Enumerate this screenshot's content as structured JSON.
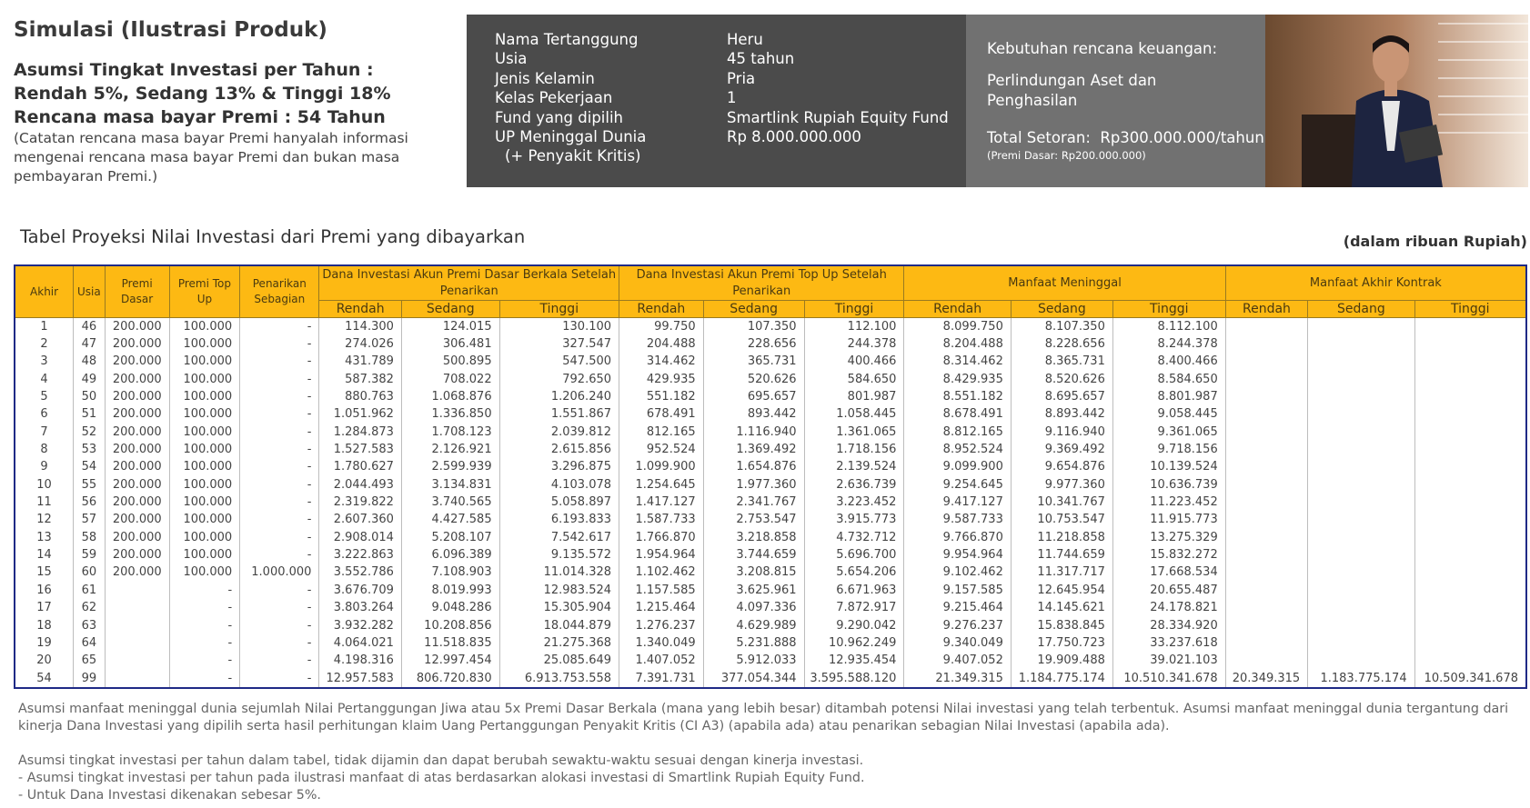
{
  "header": {
    "title": "Simulasi (Ilustrasi Produk)",
    "assumption_lines": [
      "Asumsi Tingkat Investasi per Tahun :",
      "Rendah 5%, Sedang 13% & Tinggi 18%",
      "Rencana masa bayar Premi : 54 Tahun"
    ],
    "note": "(Catatan rencana masa bayar Premi hanyalah informasi mengenai rencana masa bayar Premi dan bukan masa pembayaran Premi.)"
  },
  "info": {
    "rows": [
      {
        "label": "Nama Tertanggung",
        "value": "Heru"
      },
      {
        "label": "Usia",
        "value": "45 tahun"
      },
      {
        "label": "Jenis Kelamin",
        "value": "Pria"
      },
      {
        "label": "Kelas Pekerjaan",
        "value": "1"
      },
      {
        "label": "Fund yang dipilih",
        "value": "Smartlink Rupiah Equity Fund"
      },
      {
        "label": "UP Meninggal Dunia",
        "value": "Rp 8.000.000.000"
      }
    ],
    "note": "(+ Penyakit Kritis)"
  },
  "needs": {
    "title": "Kebutuhan rencana keuangan:",
    "need": "Perlindungan Aset dan Penghasilan",
    "total": "Total Setoran:  Rp300.000.000/tahun",
    "premi_dasar": "(Premi Dasar: Rp200.000.000)"
  },
  "table": {
    "title": "Tabel Proyeksi Nilai Investasi dari Premi yang dibayarkan",
    "unit": "(dalam ribuan Rupiah)",
    "columns": [
      "Akhir",
      "Usia",
      "Premi Dasar",
      "Premi Top Up",
      "Penarikan Sebagian"
    ],
    "groups": [
      {
        "label": "Dana Investasi Akun Premi Dasar Berkala Setelah Penarikan",
        "sub": [
          "Rendah",
          "Sedang",
          "Tinggi"
        ]
      },
      {
        "label": "Dana Investasi Akun Premi Top Up Setelah Penarikan",
        "sub": [
          "Rendah",
          "Sedang",
          "Tinggi"
        ]
      },
      {
        "label": "Manfaat Meninggal",
        "sub": [
          "Rendah",
          "Sedang",
          "Tinggi"
        ]
      },
      {
        "label": "Manfaat Akhir Kontrak",
        "sub": [
          "Rendah",
          "Sedang",
          "Tinggi"
        ]
      }
    ],
    "rows": [
      [
        1,
        46,
        "200.000",
        "100.000",
        "-",
        "114.300",
        "124.015",
        "130.100",
        "99.750",
        "107.350",
        "112.100",
        "8.099.750",
        "8.107.350",
        "8.112.100"
      ],
      [
        2,
        47,
        "200.000",
        "100.000",
        "-",
        "274.026",
        "306.481",
        "327.547",
        "204.488",
        "228.656",
        "244.378",
        "8.204.488",
        "8.228.656",
        "8.244.378"
      ],
      [
        3,
        48,
        "200.000",
        "100.000",
        "-",
        "431.789",
        "500.895",
        "547.500",
        "314.462",
        "365.731",
        "400.466",
        "8.314.462",
        "8.365.731",
        "8.400.466"
      ],
      [
        4,
        49,
        "200.000",
        "100.000",
        "-",
        "587.382",
        "708.022",
        "792.650",
        "429.935",
        "520.626",
        "584.650",
        "8.429.935",
        "8.520.626",
        "8.584.650"
      ],
      [
        5,
        50,
        "200.000",
        "100.000",
        "-",
        "880.763",
        "1.068.876",
        "1.206.240",
        "551.182",
        "695.657",
        "801.987",
        "8.551.182",
        "8.695.657",
        "8.801.987"
      ],
      [
        6,
        51,
        "200.000",
        "100.000",
        "-",
        "1.051.962",
        "1.336.850",
        "1.551.867",
        "678.491",
        "893.442",
        "1.058.445",
        "8.678.491",
        "8.893.442",
        "9.058.445"
      ],
      [
        7,
        52,
        "200.000",
        "100.000",
        "-",
        "1.284.873",
        "1.708.123",
        "2.039.812",
        "812.165",
        "1.116.940",
        "1.361.065",
        "8.812.165",
        "9.116.940",
        "9.361.065"
      ],
      [
        8,
        53,
        "200.000",
        "100.000",
        "-",
        "1.527.583",
        "2.126.921",
        "2.615.856",
        "952.524",
        "1.369.492",
        "1.718.156",
        "8.952.524",
        "9.369.492",
        "9.718.156"
      ],
      [
        9,
        54,
        "200.000",
        "100.000",
        "-",
        "1.780.627",
        "2.599.939",
        "3.296.875",
        "1.099.900",
        "1.654.876",
        "2.139.524",
        "9.099.900",
        "9.654.876",
        "10.139.524"
      ],
      [
        10,
        55,
        "200.000",
        "100.000",
        "-",
        "2.044.493",
        "3.134.831",
        "4.103.078",
        "1.254.645",
        "1.977.360",
        "2.636.739",
        "9.254.645",
        "9.977.360",
        "10.636.739"
      ],
      [
        11,
        56,
        "200.000",
        "100.000",
        "-",
        "2.319.822",
        "3.740.565",
        "5.058.897",
        "1.417.127",
        "2.341.767",
        "3.223.452",
        "9.417.127",
        "10.341.767",
        "11.223.452"
      ],
      [
        12,
        57,
        "200.000",
        "100.000",
        "-",
        "2.607.360",
        "4.427.585",
        "6.193.833",
        "1.587.733",
        "2.753.547",
        "3.915.773",
        "9.587.733",
        "10.753.547",
        "11.915.773"
      ],
      [
        13,
        58,
        "200.000",
        "100.000",
        "-",
        "2.908.014",
        "5.208.107",
        "7.542.617",
        "1.766.870",
        "3.218.858",
        "4.732.712",
        "9.766.870",
        "11.218.858",
        "13.275.329"
      ],
      [
        14,
        59,
        "200.000",
        "100.000",
        "-",
        "3.222.863",
        "6.096.389",
        "9.135.572",
        "1.954.964",
        "3.744.659",
        "5.696.700",
        "9.954.964",
        "11.744.659",
        "15.832.272"
      ],
      [
        15,
        60,
        "200.000",
        "100.000",
        "1.000.000",
        "3.552.786",
        "7.108.903",
        "11.014.328",
        "1.102.462",
        "3.208.815",
        "5.654.206",
        "9.102.462",
        "11.317.717",
        "17.668.534"
      ],
      [
        16,
        61,
        null,
        "-",
        "-",
        "3.676.709",
        "8.019.993",
        "12.983.524",
        "1.157.585",
        "3.625.961",
        "6.671.963",
        "9.157.585",
        "12.645.954",
        "20.655.487"
      ],
      [
        17,
        62,
        null,
        "-",
        "-",
        "3.803.264",
        "9.048.286",
        "15.305.904",
        "1.215.464",
        "4.097.336",
        "7.872.917",
        "9.215.464",
        "14.145.621",
        "24.178.821"
      ],
      [
        18,
        63,
        null,
        "-",
        "-",
        "3.932.282",
        "10.208.856",
        "18.044.879",
        "1.276.237",
        "4.629.989",
        "9.290.042",
        "9.276.237",
        "15.838.845",
        "28.334.920"
      ],
      [
        19,
        64,
        null,
        "-",
        "-",
        "4.064.021",
        "11.518.835",
        "21.275.368",
        "1.340.049",
        "5.231.888",
        "10.962.249",
        "9.340.049",
        "17.750.723",
        "33.237.618"
      ],
      [
        20,
        65,
        null,
        "-",
        "-",
        "4.198.316",
        "12.997.454",
        "25.085.649",
        "1.407.052",
        "5.912.033",
        "12.935.454",
        "9.407.052",
        "19.909.488",
        "39.021.103"
      ],
      [
        54,
        99,
        null,
        "-",
        "-",
        "12.957.583",
        "806.720.830",
        "6.913.753.558",
        "7.391.731",
        "377.054.344",
        "3.595.588.120",
        "21.349.315",
        "1.184.775.174",
        "10.510.341.678",
        "20.349.315",
        "1.183.775.174",
        "10.509.341.678"
      ]
    ]
  },
  "footnotes": [
    "Asumsi manfaat meninggal dunia sejumlah Nilai Pertanggungan Jiwa atau 5x Premi Dasar Berkala (mana yang lebih besar) ditambah potensi Nilai investasi yang telah terbentuk. Asumsi manfaat meninggal dunia tergantung dari kinerja Dana Investasi yang dipilih serta hasil perhitungan klaim Uang Pertanggungan Penyakit Kritis (CI A3) (apabila ada) atau penarikan sebagian Nilai Investasi (apabila ada).",
    "Asumsi tingkat investasi per tahun dalam tabel, tidak dijamin dan dapat berubah sewaktu-waktu sesuai dengan kinerja investasi.",
    "- Asumsi tingkat investasi per tahun pada ilustrasi manfaat di atas berdasarkan alokasi investasi di Smartlink Rupiah Equity Fund.",
    "- Untuk Dana Investasi dikenakan sebesar 5%."
  ]
}
